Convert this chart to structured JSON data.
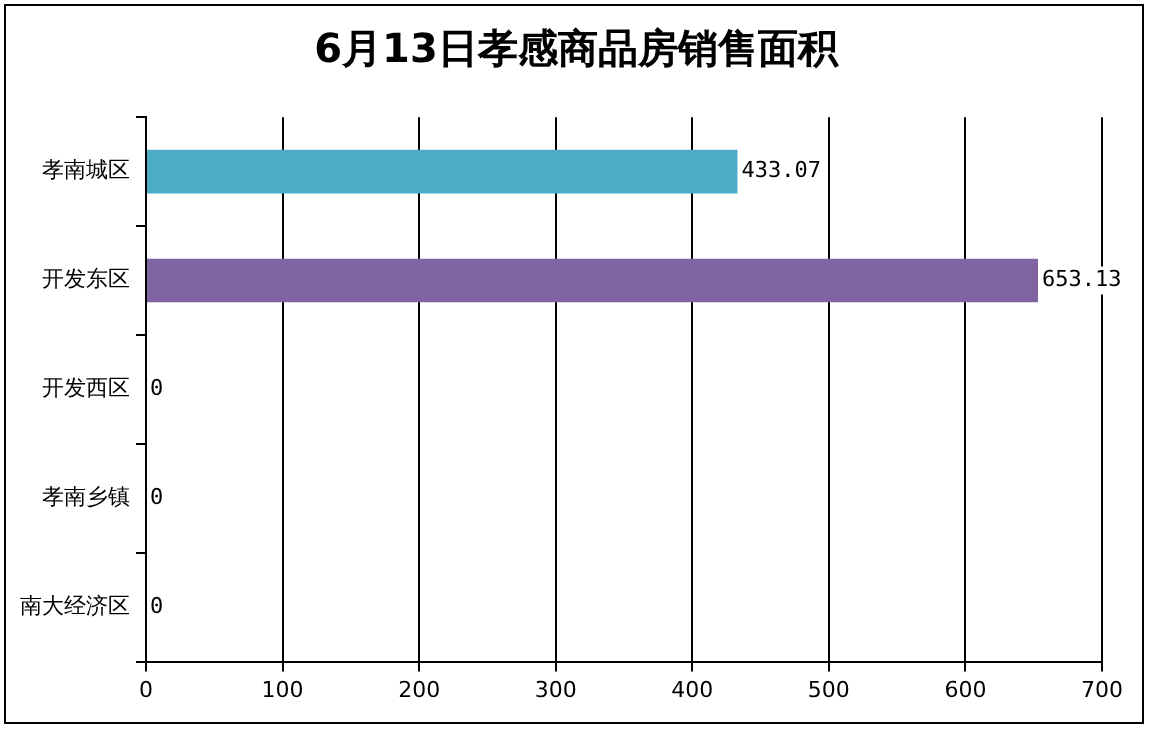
{
  "chart_data": {
    "type": "bar",
    "orientation": "horizontal",
    "title": "6月13日孝感商品房销售面积",
    "categories": [
      "孝南城区",
      "开发东区",
      "开发西区",
      "孝南乡镇",
      "南大经济区"
    ],
    "values": [
      433.07,
      653.13,
      0,
      0,
      0
    ],
    "colors": [
      "#4bacc6",
      "#8064a2",
      "#4bacc6",
      "#8064a2",
      "#4bacc6"
    ],
    "xlim": [
      0,
      700
    ],
    "xticks": [
      0,
      100,
      200,
      300,
      400,
      500,
      600,
      700
    ],
    "grid": "x",
    "data_labels": true,
    "legend": false
  }
}
